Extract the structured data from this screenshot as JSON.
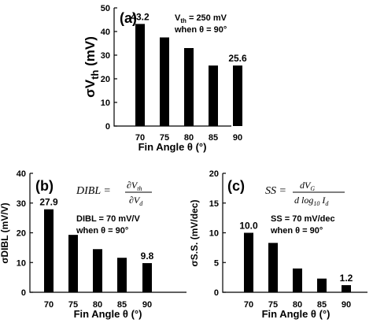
{
  "chart_data": [
    {
      "type": "bar",
      "panel": "(a)",
      "categories": [
        "70",
        "75",
        "80",
        "85",
        "90"
      ],
      "values": [
        43.2,
        37.5,
        33.0,
        25.6,
        25.6
      ],
      "data_labels": [
        "43.2",
        "",
        "",
        "",
        "25.6"
      ],
      "ylim": [
        0,
        50
      ],
      "yticks": [
        "0",
        "10",
        "20",
        "30",
        "40",
        "50"
      ],
      "ylabel_main": "σV",
      "ylabel_sub": "th",
      "ylabel_unit": " (mV)",
      "xlabel": "Fin Angle θ (°)",
      "annotation": [
        "V",
        "th",
        " = 250 mV",
        "when θ = 90°"
      ]
    },
    {
      "type": "bar",
      "panel": "(b)",
      "categories": [
        "70",
        "75",
        "80",
        "85",
        "90"
      ],
      "values": [
        27.9,
        19.3,
        14.5,
        11.6,
        9.8
      ],
      "data_labels": [
        "27.9",
        "",
        "",
        "",
        "9.8"
      ],
      "ylim": [
        0,
        40
      ],
      "yticks": [
        "0",
        "10",
        "20",
        "30",
        "40"
      ],
      "ylabel": "σDIBL (mV/V)",
      "xlabel": "Fin Angle θ (°)",
      "formula": [
        "DIBL =",
        "∂V",
        "th",
        "∂V",
        "d"
      ],
      "annotation": [
        "DIBL = 70 mV/V",
        "when θ = 90°"
      ]
    },
    {
      "type": "bar",
      "panel": "(c)",
      "categories": [
        "70",
        "75",
        "80",
        "85",
        "90"
      ],
      "values": [
        10.0,
        8.3,
        4.0,
        2.3,
        1.2
      ],
      "data_labels": [
        "10.0",
        "",
        "",
        "",
        "1.2"
      ],
      "ylim": [
        0,
        20
      ],
      "yticks": [
        "0",
        "5",
        "10",
        "15",
        "20"
      ],
      "ylabel": "σS.S. (mV/dec)",
      "xlabel": "Fin Angle θ (°)",
      "formula": [
        "SS =",
        "dV",
        "G",
        "d log",
        "10",
        " I",
        "d"
      ],
      "annotation": [
        "SS = 70 mV/dec",
        "when θ = 90°"
      ]
    }
  ]
}
